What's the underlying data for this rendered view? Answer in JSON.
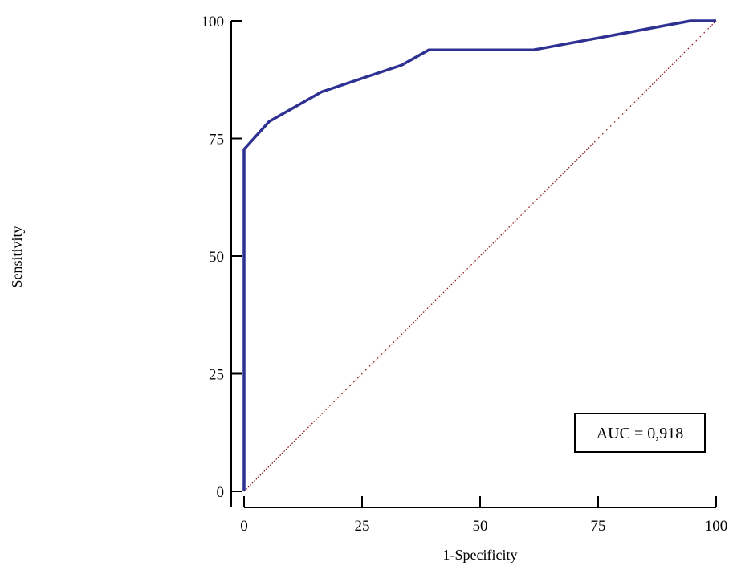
{
  "chart_data": {
    "type": "line",
    "title": "",
    "xlabel": "1-Specificity",
    "ylabel": "Sensitivity",
    "xlim": [
      0,
      100
    ],
    "ylim": [
      0,
      100
    ],
    "x_ticks": [
      "0",
      "25",
      "50",
      "75",
      "100"
    ],
    "y_ticks": [
      "0",
      "25",
      "50",
      "75",
      "100"
    ],
    "grid": false,
    "series": [
      {
        "kind": "roc",
        "color": "#2e3192",
        "points": [
          [
            0,
            0
          ],
          [
            0,
            72.7
          ],
          [
            5.3,
            78.6
          ],
          [
            16.4,
            84.9
          ],
          [
            33.4,
            90.6
          ],
          [
            39.1,
            93.8
          ],
          [
            61.2,
            93.8
          ],
          [
            94.6,
            100
          ],
          [
            100,
            100
          ]
        ]
      },
      {
        "kind": "reference",
        "color": "#8b1a1a",
        "points": [
          [
            0,
            0
          ],
          [
            100,
            100
          ]
        ]
      }
    ],
    "annotation": "AUC = 0,918"
  }
}
